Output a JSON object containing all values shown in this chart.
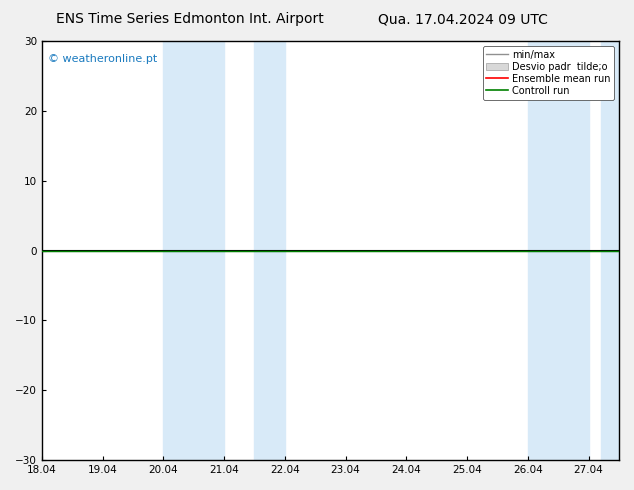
{
  "title_left": "ENS Time Series Edmonton Int. Airport",
  "title_right": "Qua. 17.04.2024 09 UTC",
  "watermark": "© weatheronline.pt",
  "watermark_color": "#1a7abf",
  "ylim": [
    -30,
    30
  ],
  "yticks": [
    -30,
    -20,
    -10,
    0,
    10,
    20,
    30
  ],
  "xlim": [
    18.0,
    27.5
  ],
  "xtick_positions": [
    18,
    19,
    20,
    21,
    22,
    23,
    24,
    25,
    26,
    27
  ],
  "xtick_labels": [
    "18.04",
    "19.04",
    "20.04",
    "21.04",
    "22.04",
    "23.04",
    "24.04",
    "25.04",
    "26.04",
    "27.04"
  ],
  "shaded_bands": [
    [
      20.0,
      21.0
    ],
    [
      21.5,
      22.0
    ],
    [
      26.0,
      27.0
    ],
    [
      27.2,
      27.5
    ]
  ],
  "shaded_color": "#d8eaf8",
  "zero_line_color": "#000000",
  "green_line_color": "#008000",
  "bg_color": "#f0f0f0",
  "plot_bg_color": "#ffffff",
  "spine_color": "#000000",
  "title_fontsize": 10,
  "tick_fontsize": 7.5,
  "legend_labels": [
    "min/max",
    "Desvio padr  tilde;o",
    "Ensemble mean run",
    "Controll run"
  ],
  "legend_line_colors": [
    "#909090",
    "#c8c8c8",
    "#ff0000",
    "#008000"
  ],
  "legend_fontsize": 7
}
